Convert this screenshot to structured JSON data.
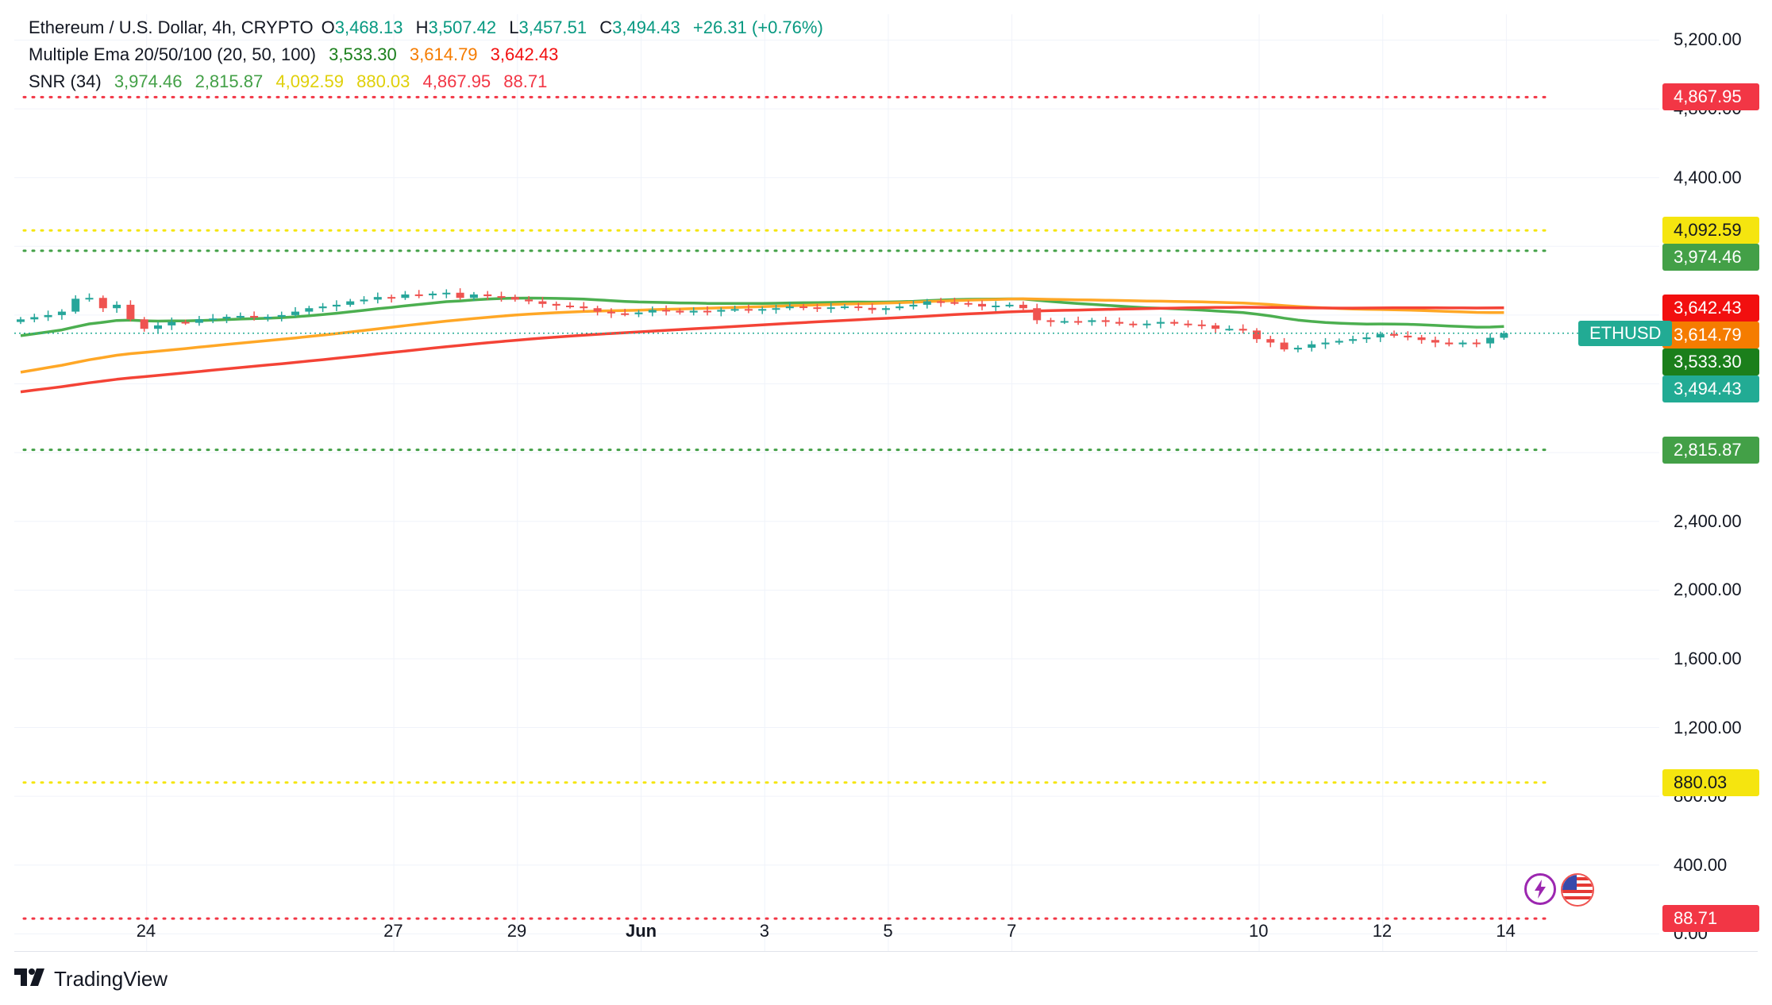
{
  "header": {
    "symbol_title": "Ethereum / U.S. Dollar, 4h, CRYPTO",
    "o_label": "O",
    "o_value": "3,468.13",
    "h_label": "H",
    "h_value": "3,507.42",
    "l_label": "L",
    "l_value": "3,457.51",
    "c_label": "C",
    "c_value": "3,494.43",
    "change": "+26.31 (+0.76%)"
  },
  "indicators": {
    "ema_title": "Multiple Ema 20/50/100 (20, 50, 100)",
    "ema_values": [
      "3,533.30",
      "3,614.79",
      "3,642.43"
    ],
    "snr_title": "SNR (34)",
    "snr_values": [
      "3,974.46",
      "2,815.87",
      "4,092.59",
      "880.03",
      "4,867.95",
      "88.71"
    ]
  },
  "brand": {
    "name": "TradingView"
  },
  "colors": {
    "up": "#26a69a",
    "down": "#ef5350",
    "ema20": "#4caf50",
    "ema50": "#ffa726",
    "ema100": "#f44336",
    "snr_green": "#43a047",
    "snr_yellow": "#f5e50f",
    "snr_red": "#f23645",
    "ethusd_tag": "#22ab94"
  },
  "price_tags": [
    {
      "label": "4,867.95",
      "value": 4867.95,
      "bg": "#f23645",
      "fg": "#ffffff"
    },
    {
      "label": "4,092.59",
      "value": 4092.59,
      "bg": "#f5e50f",
      "fg": "#131722"
    },
    {
      "label": "3,974.46",
      "value": 3974.46,
      "bg": "#43a047",
      "fg": "#ffffff"
    },
    {
      "label": "3,642.43",
      "value": 3642.43,
      "bg": "#f20f0f",
      "fg": "#ffffff"
    },
    {
      "label": "3,614.79",
      "value": 3614.79,
      "bg": "#f57c00",
      "fg": "#ffffff"
    },
    {
      "label": "3,533.30",
      "value": 3533.3,
      "bg": "#1b7f1b",
      "fg": "#ffffff"
    },
    {
      "label": "3,494.43",
      "value": 3494.43,
      "bg": "#22ab94",
      "fg": "#ffffff"
    },
    {
      "label": "2,815.87",
      "value": 2815.87,
      "bg": "#43a047",
      "fg": "#ffffff"
    },
    {
      "label": "880.03",
      "value": 880.03,
      "bg": "#f5e50f",
      "fg": "#131722"
    },
    {
      "label": "88.71",
      "value": 88.71,
      "bg": "#f23645",
      "fg": "#ffffff"
    }
  ],
  "ethusd_label": "ETHUSD",
  "chart_data": {
    "type": "line",
    "title": "Ethereum / U.S. Dollar, 4h, CRYPTO",
    "ylim": [
      -100,
      5350
    ],
    "yticks": [
      {
        "value": 5200,
        "label": "5,200.00"
      },
      {
        "value": 4800,
        "label": "4,800.00"
      },
      {
        "value": 4400,
        "label": "4,400.00"
      },
      {
        "value": 4000,
        "label": "4,000.00"
      },
      {
        "value": 3600,
        "label": "3,600.00"
      },
      {
        "value": 3200,
        "label": "3,200.00"
      },
      {
        "value": 2800,
        "label": "2,800.00"
      },
      {
        "value": 2400,
        "label": "2,400.00"
      },
      {
        "value": 2000,
        "label": "2,000.00"
      },
      {
        "value": 1600,
        "label": "1,600.00"
      },
      {
        "value": 1200,
        "label": "1,200.00"
      },
      {
        "value": 800,
        "label": "800.00"
      },
      {
        "value": 400,
        "label": "400.00"
      },
      {
        "value": 0,
        "label": "0.00"
      }
    ],
    "xticks": [
      "24",
      "27",
      "29",
      "Jun",
      "3",
      "5",
      "7",
      "10",
      "12",
      "14"
    ],
    "xtick_bars": [
      9,
      27,
      36,
      45,
      54,
      63,
      72,
      90,
      99,
      108
    ],
    "snr_levels": [
      {
        "value": 4867.95,
        "color": "#f23645"
      },
      {
        "value": 4092.59,
        "color": "#f5e50f"
      },
      {
        "value": 3974.46,
        "color": "#43a047"
      },
      {
        "value": 2815.87,
        "color": "#43a047"
      },
      {
        "value": 880.03,
        "color": "#f5e50f"
      },
      {
        "value": 88.71,
        "color": "#f23645"
      }
    ],
    "current_price": 3494.43,
    "closes": [
      3575,
      3588,
      3600,
      3620,
      3695,
      3700,
      3640,
      3660,
      3575,
      3520,
      3540,
      3560,
      3555,
      3575,
      3580,
      3590,
      3595,
      3585,
      3590,
      3600,
      3620,
      3640,
      3650,
      3660,
      3680,
      3690,
      3705,
      3700,
      3720,
      3715,
      3725,
      3730,
      3700,
      3720,
      3710,
      3705,
      3690,
      3680,
      3665,
      3655,
      3650,
      3640,
      3620,
      3610,
      3605,
      3615,
      3630,
      3625,
      3615,
      3625,
      3620,
      3630,
      3635,
      3628,
      3635,
      3640,
      3650,
      3645,
      3640,
      3645,
      3650,
      3642,
      3630,
      3640,
      3650,
      3660,
      3680,
      3675,
      3670,
      3665,
      3650,
      3655,
      3660,
      3640,
      3570,
      3560,
      3565,
      3560,
      3570,
      3560,
      3550,
      3545,
      3550,
      3560,
      3550,
      3545,
      3540,
      3520,
      3520,
      3510,
      3460,
      3440,
      3400,
      3410,
      3430,
      3440,
      3450,
      3460,
      3470,
      3490,
      3480,
      3470,
      3455,
      3440,
      3430,
      3440,
      3435,
      3468,
      3494
    ],
    "series": [
      {
        "name": "EMA 20",
        "start": 3470,
        "end": 3533.3
      },
      {
        "name": "EMA 50",
        "start": 3255,
        "end": 3614.79
      },
      {
        "name": "EMA 100",
        "start": 3145,
        "end": 3642.43
      }
    ]
  }
}
